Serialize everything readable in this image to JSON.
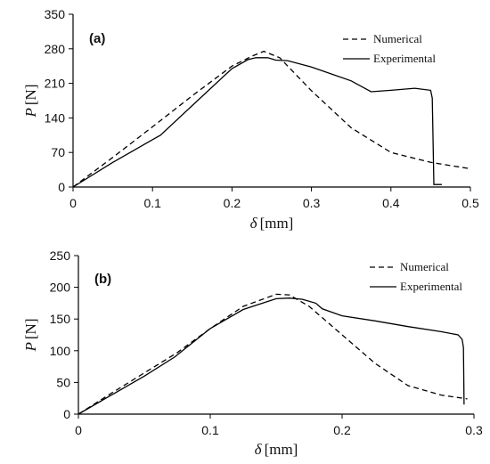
{
  "chart_data": [
    {
      "type": "line",
      "panel_label": "(a)",
      "xlabel_symbol": "δ",
      "xlabel_unit": "[mm]",
      "ylabel_symbol": "P",
      "ylabel_unit": "[N]",
      "xlim": [
        0,
        0.5
      ],
      "ylim": [
        0,
        350
      ],
      "xticks": [
        "0",
        "0.1",
        "0.2",
        "0.3",
        "0.4",
        "0.5"
      ],
      "xtick_values": [
        0,
        0.1,
        0.2,
        0.3,
        0.4,
        0.5
      ],
      "yticks": [
        "0",
        "70",
        "140",
        "210",
        "280",
        "350"
      ],
      "ytick_values": [
        0,
        70,
        140,
        210,
        280,
        350
      ],
      "legend_position": "top-right",
      "series": [
        {
          "name": "Numerical",
          "style": "dashed",
          "x": [
            0,
            0.05,
            0.1,
            0.15,
            0.2,
            0.225,
            0.24,
            0.26,
            0.3,
            0.35,
            0.4,
            0.45,
            0.5
          ],
          "y": [
            0,
            60,
            122,
            185,
            245,
            265,
            275,
            262,
            195,
            120,
            70,
            50,
            37
          ]
        },
        {
          "name": "Experimental",
          "style": "solid",
          "x": [
            0,
            0.05,
            0.1,
            0.11,
            0.15,
            0.2,
            0.22,
            0.23,
            0.245,
            0.255,
            0.27,
            0.3,
            0.35,
            0.375,
            0.4,
            0.43,
            0.45,
            0.452,
            0.454,
            0.464
          ],
          "y": [
            0,
            50,
            96,
            105,
            165,
            240,
            258,
            262,
            262,
            257,
            256,
            243,
            215,
            193,
            196,
            200,
            196,
            180,
            5,
            5
          ]
        }
      ]
    },
    {
      "type": "line",
      "panel_label": "(b)",
      "xlabel_symbol": "δ",
      "xlabel_unit": "[mm]",
      "ylabel_symbol": "P",
      "ylabel_unit": "[N]",
      "xlim": [
        0,
        0.3
      ],
      "ylim": [
        0,
        250
      ],
      "xticks": [
        "0",
        "0.1",
        "0.2",
        "0.3"
      ],
      "xtick_values": [
        0,
        0.1,
        0.2,
        0.3
      ],
      "yticks": [
        "0",
        "50",
        "100",
        "150",
        "200",
        "250"
      ],
      "ytick_values": [
        0,
        50,
        100,
        150,
        200,
        250
      ],
      "legend_position": "top-right",
      "series": [
        {
          "name": "Numerical",
          "style": "dashed",
          "x": [
            0,
            0.025,
            0.05,
            0.075,
            0.1,
            0.125,
            0.15,
            0.16,
            0.175,
            0.2,
            0.225,
            0.25,
            0.275,
            0.295
          ],
          "y": [
            0,
            33,
            65,
            97,
            135,
            170,
            189,
            188,
            170,
            125,
            80,
            45,
            30,
            24
          ]
        },
        {
          "name": "Experimental",
          "style": "solid",
          "x": [
            0,
            0.025,
            0.05,
            0.073,
            0.1,
            0.125,
            0.15,
            0.16,
            0.17,
            0.18,
            0.185,
            0.2,
            0.225,
            0.25,
            0.275,
            0.288,
            0.291,
            0.292,
            0.2925
          ],
          "y": [
            0,
            30,
            60,
            90,
            135,
            165,
            182,
            183,
            181,
            175,
            166,
            155,
            147,
            138,
            130,
            125,
            118,
            105,
            15
          ]
        }
      ]
    }
  ]
}
